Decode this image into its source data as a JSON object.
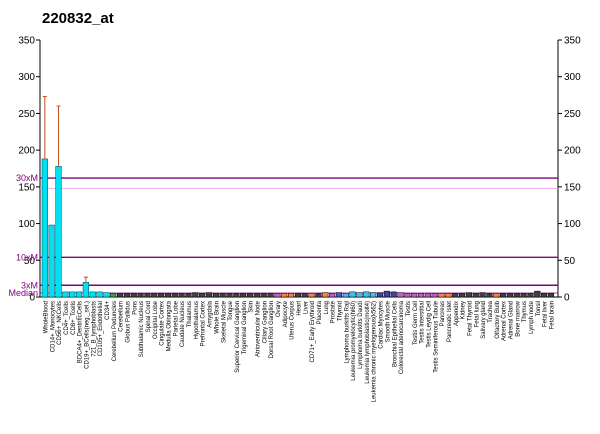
{
  "chart_data": {
    "type": "bar",
    "title": "220832_at",
    "ylim": [
      0,
      350
    ],
    "yticks": [
      0,
      50,
      100,
      150,
      200,
      250,
      300,
      350
    ],
    "yticks_right": [
      0,
      50,
      100,
      150,
      200,
      250,
      300,
      350
    ],
    "grid": false,
    "reference_lines": [
      {
        "label": "30xM",
        "value": 162,
        "color": "#800080"
      },
      {
        "label": "10xM",
        "value": 54,
        "color": "#800080"
      },
      {
        "label": "3xM",
        "value": 16,
        "color": "#800080"
      },
      {
        "label": "Median",
        "value": 5.4,
        "color": "#800080"
      }
    ],
    "categories": [
      "WholeBlood",
      "CD14+_Monocytes",
      "CD56+_NKCells",
      "CD4+_Tcells",
      "CD8+_Tcells",
      "BDCA4+_DentriticCells",
      "CD19+_BCells(neg._sel.)",
      "721_B_lymphoblasts",
      "CD105+_Endothelial",
      "CD34+",
      "Cerebellum Peduncles",
      "Cerebellum",
      "Globus Pallidus",
      "Pons",
      "Subthalamic Nucleus",
      "Spinal Cord",
      "Occipital Lobe",
      "Cingulate Cortex",
      "Medulla Oblongata",
      "Parietal Lobe",
      "Caudate Nucleus",
      "Thalamus",
      "Hypothalamus",
      "Prefrontal Cortex",
      "Amygdala",
      "Whole Brain",
      "Skeletal Muscle",
      "Tongue",
      "Superior Cervical Ganglion",
      "Trigeminal Ganglion",
      "Skin",
      "Atrioventricular Node",
      "Ciliary Ganglion",
      "Dorsal Root Ganglion",
      "Ovary",
      "Adipocyte",
      "Uterus Corpus",
      "Heart",
      "Liver",
      "CD71+_Early Erythroid",
      "Placenta",
      "Lung",
      "Prostate",
      "Thyroid",
      "Lymphoma burkitts Raji",
      "Leukemia promyelocytic(hl60)",
      "Lymphoma burkitts Daudi",
      "Leukemia lymphoblastic(molt4)",
      "Leukemia chronic myelogenous(k562)",
      "Cardiac Myocytes",
      "Smooth Muscle",
      "Bronchial Epithelial Cells",
      "Colorectal adenocarcinoma",
      "Testis",
      "Testis Germ Cell",
      "Testis Interstitial",
      "Testis Leydig Cell",
      "Testis Seminiferous Tubule",
      "Pancreas",
      "Pancreatic Islet",
      "Appendix",
      "Kidney",
      "Fetal Thyroid",
      "Fetal lung",
      "Salivary gland",
      "Trachea",
      "Olfactory Bulb",
      "Adrenal Cortex",
      "Adrenal Gland",
      "Bone marrow",
      "Thymus",
      "Lymph node",
      "Tonsil",
      "Fetal liver",
      "Fetal brain"
    ],
    "visible_labels": [
      "WholeBlood",
      "CD14+_Monocytes",
      "CD56+_NKCells",
      "CD4+_Tcells",
      "CD8+_Tcells",
      "BDCA4+_DentriticCells",
      "CD19+_BCells(neg._sel.)",
      "721_B_lymphoblasts",
      "CD105+_Endothelial",
      "CD34+",
      "Cerebellum Peduncles",
      "Cerebellum",
      "Globus Pallidus",
      "Pons",
      "Subthalamic Nucleus",
      "Spinal Cord",
      "Occipital Lobe",
      "Cingulate Cortex",
      "Medulla Oblongata",
      "Parietal Lobe",
      "Caudate Nucleus",
      "Thalamus",
      "Hypothalamus",
      "Prefrontal Cortex",
      "Amygdala",
      "Whole Brain",
      "Skeletal Muscle",
      "Tongue",
      "Superior Cervical Ganglion",
      "Trigeminal Ganglion",
      "Skin",
      "Atrioventricular Node",
      "Ciliary Ganglion",
      "Dorsal Root Ganglion",
      "Ovary",
      "Adipocyte",
      "Uterus Corpus",
      "Heart",
      "Liver",
      "CD71+_Early Erythroid",
      "Placenta",
      "Lung",
      "Prostate",
      "Thyroid",
      "Lymphoma burkitts Raji",
      "Leukemia promyelocytic(hl60)",
      "Lymphoma burkitts Daudi",
      "Leukemia lymphoblastic(molt4)",
      "Leukemia chronic myelogenous(k562)",
      "Cardiac Myocytes",
      "Smooth Muscle",
      "Bronchial Epithelial Cells",
      "Colorectal adenocarcinoma",
      "Testis",
      "Testis Germ Cell",
      "Testis Interstitial",
      "Testis Leydig Cell",
      "Testis Seminiferous Tubule",
      "Pancreas",
      "Pancreatic Islet",
      "Appendix",
      "Kidney",
      "Fetal Thyroid",
      "Fetal lung",
      "Salivary gland",
      "Trachea",
      "Olfactory Bulb",
      "Adrenal Cortex",
      "Adrenal Gland",
      "Bone marrow",
      "Thymus",
      "Lymph node",
      "Tonsil",
      "Fetal liver",
      "Fetal brain"
    ],
    "series": [
      {
        "values": [
          188,
          98,
          178,
          7,
          7,
          7,
          20,
          7,
          7,
          6,
          5,
          5,
          5,
          5,
          5,
          5,
          5,
          5,
          5,
          5,
          5,
          5,
          6,
          5,
          6,
          5,
          5,
          5,
          5,
          5,
          5,
          5,
          5,
          5,
          5,
          5,
          5,
          5,
          5,
          5,
          5,
          6,
          5,
          6,
          5,
          7,
          6,
          7,
          6,
          6,
          8,
          7,
          6,
          5,
          5,
          5,
          5,
          5,
          5,
          5,
          5,
          5,
          6,
          5,
          6,
          5,
          5,
          5,
          5,
          5,
          5,
          5,
          8,
          5,
          5
        ],
        "errors": [
          85,
          0,
          82,
          0,
          0,
          0,
          7,
          0,
          0,
          0,
          0,
          0,
          0,
          0,
          0,
          0,
          0,
          0,
          0,
          0,
          0,
          0,
          0,
          0,
          0,
          0,
          0,
          0,
          0,
          0,
          0,
          0,
          0,
          0,
          0,
          0,
          0,
          0,
          0,
          0,
          0,
          0,
          0,
          0,
          0,
          0,
          0,
          0,
          0,
          0,
          0,
          0,
          0,
          0,
          0,
          0,
          0,
          0,
          0,
          0,
          0,
          0,
          0,
          0,
          0,
          0,
          0,
          0,
          0,
          0,
          0,
          0,
          0,
          0,
          0
        ],
        "colors": [
          "#00e0f0",
          "#00e0f0",
          "#00e0f0",
          "#00e0f0",
          "#00e0f0",
          "#00e0f0",
          "#00e0f0",
          "#00e0f0",
          "#00e0f0",
          "#00e0f0",
          "#40a040",
          "#404040",
          "#404040",
          "#404040",
          "#404040",
          "#404040",
          "#404040",
          "#404040",
          "#404040",
          "#404040",
          "#404040",
          "#404040",
          "#404040",
          "#404040",
          "#404040",
          "#404040",
          "#404040",
          "#404040",
          "#404040",
          "#404040",
          "#404040",
          "#404040",
          "#404040",
          "#404040",
          "#c060c0",
          "#ff8040",
          "#ff8040",
          "#404040",
          "#404040",
          "#ff8040",
          "#404040",
          "#ff8040",
          "#c060c0",
          "#4060c0",
          "#40c0f0",
          "#40c0f0",
          "#40c0f0",
          "#40c0f0",
          "#40c0f0",
          "#4040a0",
          "#4040a0",
          "#4040a0",
          "#c060c0",
          "#c060c0",
          "#c060c0",
          "#c060c0",
          "#c060c0",
          "#c060c0",
          "#ff8040",
          "#ff8040",
          "#404040",
          "#404040",
          "#404040",
          "#404040",
          "#404040",
          "#404040",
          "#ff8040",
          "#404040",
          "#404040",
          "#404040",
          "#404040",
          "#404040",
          "#404040",
          "#404040",
          "#404040"
        ]
      }
    ]
  }
}
